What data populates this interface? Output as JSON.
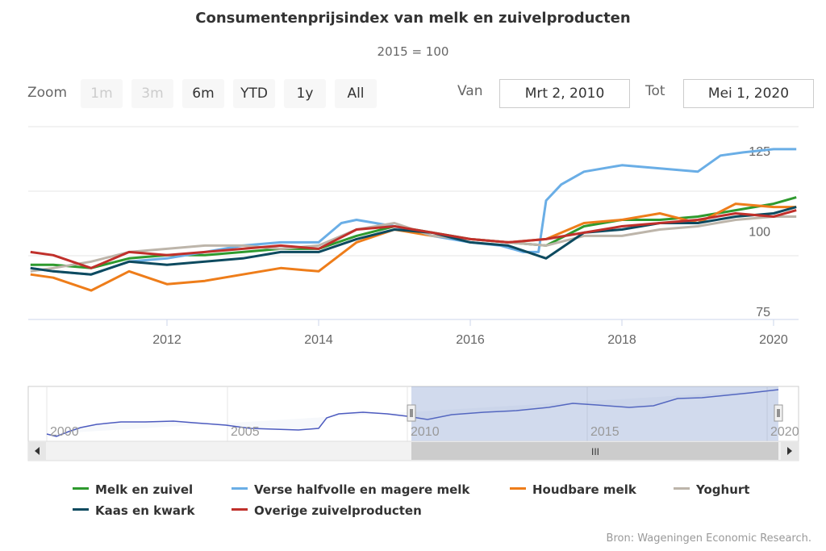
{
  "title": "Consumentenprijsindex van melk en zuivelproducten",
  "subtitle": "2015 = 100",
  "range_selector": {
    "zoom_label": "Zoom",
    "buttons": [
      {
        "label": "1m",
        "enabled": false
      },
      {
        "label": "3m",
        "enabled": false
      },
      {
        "label": "6m",
        "enabled": true
      },
      {
        "label": "YTD",
        "enabled": true
      },
      {
        "label": "1y",
        "enabled": true
      },
      {
        "label": "All",
        "enabled": true
      }
    ],
    "from_label": "Van",
    "from_value": "Mrt 2, 2010",
    "to_label": "Tot",
    "to_value": "Mei 1, 2020"
  },
  "navigator": {
    "x_ticks": [
      "2000",
      "2005",
      "2010",
      "2015",
      "2020"
    ],
    "scroll_label": "III"
  },
  "credit": "Bron: Wageningen Economic Research.",
  "chart_data": {
    "type": "line",
    "x_range": [
      2010.17,
      2020.33
    ],
    "y_range": [
      75,
      135
    ],
    "x_ticks": [
      "2012",
      "2014",
      "2016",
      "2018",
      "2020"
    ],
    "y_ticks": [
      "75",
      "100",
      "125"
    ],
    "legend_position": "bottom",
    "series": [
      {
        "name": "Melk en zuivel",
        "color": "#2e9a2e",
        "x": [
          2010.2,
          2010.5,
          2011.0,
          2011.5,
          2012.0,
          2012.5,
          2013.0,
          2013.5,
          2014.0,
          2014.5,
          2015.0,
          2015.5,
          2016.0,
          2016.5,
          2017.0,
          2017.5,
          2018.0,
          2018.5,
          2019.0,
          2019.5,
          2020.0,
          2020.3
        ],
        "y": [
          92,
          92,
          91,
          94,
          95,
          95,
          96,
          97,
          97,
          101,
          104,
          102,
          100,
          99,
          98,
          104,
          106,
          106,
          107,
          109,
          111,
          113
        ]
      },
      {
        "name": "Verse halfvolle en magere melk",
        "color": "#6aaee6",
        "x": [
          2010.2,
          2010.5,
          2011.0,
          2011.5,
          2012.0,
          2012.5,
          2013.0,
          2013.5,
          2014.0,
          2014.3,
          2014.5,
          2015.0,
          2015.5,
          2016.0,
          2016.4,
          2016.7,
          2016.9,
          2017.0,
          2017.2,
          2017.5,
          2018.0,
          2018.5,
          2019.0,
          2019.3,
          2019.6,
          2020.0,
          2020.3
        ],
        "y": [
          91,
          90,
          89,
          93,
          94,
          96,
          98,
          99,
          99,
          105,
          106,
          104,
          101,
          99,
          98,
          96,
          96,
          112,
          117,
          121,
          123,
          122,
          121,
          126,
          127,
          128,
          128
        ]
      },
      {
        "name": "Houdbare melk",
        "color": "#ee7d1a",
        "x": [
          2010.2,
          2010.5,
          2011.0,
          2011.5,
          2012.0,
          2012.5,
          2013.0,
          2013.5,
          2014.0,
          2014.5,
          2015.0,
          2015.5,
          2016.0,
          2016.5,
          2017.0,
          2017.5,
          2018.0,
          2018.5,
          2019.0,
          2019.5,
          2020.0,
          2020.3
        ],
        "y": [
          89,
          88,
          84,
          90,
          86,
          87,
          89,
          91,
          90,
          99,
          103,
          101,
          100,
          99,
          100,
          105,
          106,
          108,
          105,
          111,
          110,
          110
        ]
      },
      {
        "name": "Yoghurt",
        "color": "#bdb5aa",
        "x": [
          2010.2,
          2010.5,
          2011.0,
          2011.5,
          2012.0,
          2012.5,
          2013.0,
          2013.5,
          2014.0,
          2014.5,
          2015.0,
          2015.5,
          2016.0,
          2016.5,
          2017.0,
          2017.5,
          2018.0,
          2018.5,
          2019.0,
          2019.5,
          2020.0,
          2020.3
        ],
        "y": [
          90,
          91,
          93,
          96,
          97,
          98,
          98,
          97,
          98,
          103,
          105,
          101,
          100,
          99,
          98,
          101,
          101,
          103,
          104,
          106,
          107,
          107
        ]
      },
      {
        "name": "Kaas en kwark",
        "color": "#0d4a5f",
        "x": [
          2010.2,
          2010.5,
          2011.0,
          2011.5,
          2012.0,
          2012.5,
          2013.0,
          2013.5,
          2014.0,
          2014.5,
          2015.0,
          2015.5,
          2016.0,
          2016.5,
          2017.0,
          2017.5,
          2018.0,
          2018.5,
          2019.0,
          2019.5,
          2020.0,
          2020.3
        ],
        "y": [
          91,
          90,
          89,
          93,
          92,
          93,
          94,
          96,
          96,
          100,
          103,
          102,
          99,
          98,
          94,
          102,
          103,
          105,
          105,
          107,
          108,
          110
        ]
      },
      {
        "name": "Overige zuivelproducten",
        "color": "#c0302b",
        "x": [
          2010.2,
          2010.5,
          2011.0,
          2011.5,
          2012.0,
          2012.5,
          2013.0,
          2013.5,
          2014.0,
          2014.5,
          2015.0,
          2015.5,
          2016.0,
          2016.5,
          2017.0,
          2017.5,
          2018.0,
          2018.5,
          2019.0,
          2019.5,
          2020.0,
          2020.3
        ],
        "y": [
          96,
          95,
          91,
          96,
          95,
          96,
          97,
          98,
          97,
          103,
          104,
          102,
          100,
          99,
          100,
          102,
          104,
          105,
          106,
          108,
          107,
          109
        ]
      }
    ]
  }
}
